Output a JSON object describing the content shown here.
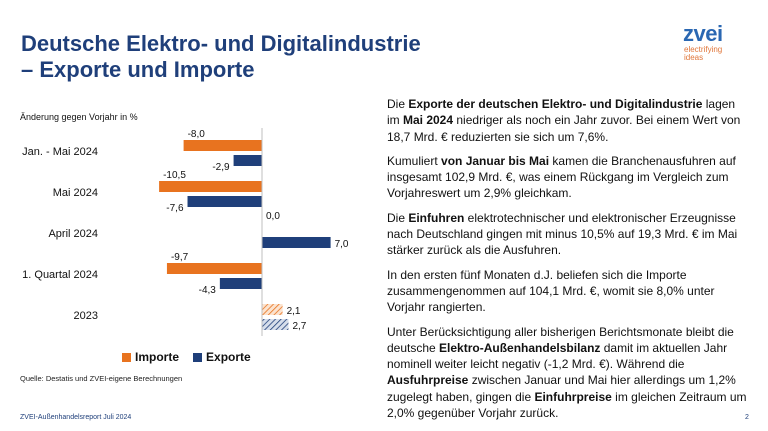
{
  "header": {
    "title": "Deutsche Elektro- und Digitalindustrie",
    "subtitle": "– Exporte und Importe"
  },
  "logo": {
    "word": "zvei",
    "tagline_1": "electrifying",
    "tagline_2": "ideas"
  },
  "chart_data": {
    "type": "bar",
    "orientation": "horizontal",
    "note": "Änderung gegen Vorjahr in %",
    "categories": [
      "Jan. - Mai 2024",
      "Mai 2024",
      "April 2024",
      "1. Quartal 2024",
      "2023"
    ],
    "series": [
      {
        "name": "Importe",
        "color": "#e8731f",
        "values": [
          -8.0,
          -10.5,
          0.0,
          -9.7,
          2.1
        ],
        "labels": [
          "-8,0",
          "-10,5",
          "0,0",
          "-9,7",
          "2,1"
        ]
      },
      {
        "name": "Exporte",
        "color": "#1f3f7a",
        "values": [
          -2.9,
          -7.6,
          7.0,
          -4.3,
          2.7
        ],
        "labels": [
          "-2,9",
          "-7,6",
          "7,0",
          "-4,3",
          "2,7"
        ]
      }
    ],
    "hatched_category": "2023",
    "xlim": [
      -12,
      8
    ],
    "grid": false,
    "legend_position": "bottom"
  },
  "legend": {
    "imports": "Importe",
    "exports": "Exporte"
  },
  "source": "Quelle: Destatis und ZVEI-eigene Berechnungen",
  "footer": {
    "left": "ZVEI-Außenhandelsreport Juli 2024",
    "page": "2"
  },
  "text": {
    "p1": [
      {
        "t": "Die ",
        "b": false
      },
      {
        "t": "Exporte der deutschen Elektro- und Digitalindustrie",
        "b": true
      },
      {
        "t": " lagen im ",
        "b": false
      },
      {
        "t": "Mai 2024",
        "b": true
      },
      {
        "t": " niedriger als noch ein Jahr zuvor. Bei einem Wert von 18,7 Mrd. € reduzierten sie sich um 7,6%.",
        "b": false
      }
    ],
    "p2": [
      {
        "t": "Kumuliert ",
        "b": false
      },
      {
        "t": "von Januar bis Mai",
        "b": true
      },
      {
        "t": " kamen die Branchenausfuhren auf insgesamt 102,9 Mrd. €, was einem Rückgang im Vergleich zum Vorjahreswert um 2,9% gleichkam.",
        "b": false
      }
    ],
    "p3": [
      {
        "t": "Die ",
        "b": false
      },
      {
        "t": "Einfuhren",
        "b": true
      },
      {
        "t": " elektrotechnischer und elektronischer Erzeugnisse nach Deutschland gingen mit minus 10,5% auf 19,3 Mrd. € im Mai stärker zurück als die Ausfuhren.",
        "b": false
      }
    ],
    "p4": [
      {
        "t": "In den ersten fünf Monaten d.J. beliefen sich die Importe zusammengenommen auf 104,1 Mrd. €, womit sie 8,0% unter Vorjahr rangierten.",
        "b": false
      }
    ],
    "p5": [
      {
        "t": "Unter Berücksichtigung aller bisherigen Berichtsmonate bleibt die deutsche ",
        "b": false
      },
      {
        "t": "Elektro-Außenhandelsbilanz",
        "b": true
      },
      {
        "t": " damit im aktuellen Jahr nominell weiter leicht negativ (-1,2 Mrd. €). Während die ",
        "b": false
      },
      {
        "t": "Ausfuhrpreise",
        "b": true
      },
      {
        "t": " zwischen Januar und Mai hier allerdings um 1,2% zugelegt haben, gingen die ",
        "b": false
      },
      {
        "t": "Einfuhrpreise",
        "b": true
      },
      {
        "t": " im gleichen Zeitraum um 2,0% gegenüber Vorjahr zurück.",
        "b": false
      }
    ]
  }
}
